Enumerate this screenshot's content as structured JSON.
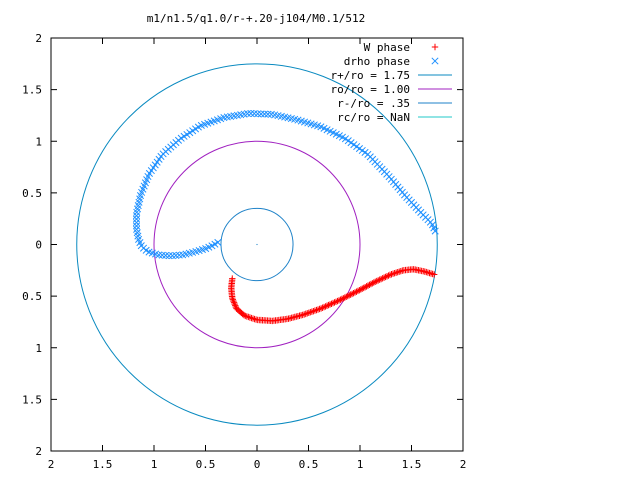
{
  "chart_data": {
    "type": "scatter",
    "title": "m1/n1.5/q1.0/r-+.20-j104/M0.1/512",
    "xlabel": "",
    "ylabel": "",
    "xlim": [
      -2,
      2
    ],
    "ylim": [
      -2,
      2
    ],
    "grid": false,
    "legend_position": "top-right",
    "x_ticks": [
      -2,
      -1.5,
      -1,
      -0.5,
      0,
      0.5,
      1,
      1.5,
      2
    ],
    "x_tick_labels": [
      "2",
      "1.5",
      "1",
      "0.5",
      "0",
      "0.5",
      "1",
      "1.5",
      "2"
    ],
    "y_ticks": [
      2,
      1.5,
      1,
      0.5,
      0,
      -0.5,
      -1,
      -1.5,
      -2
    ],
    "y_tick_labels": [
      "2",
      "1.5",
      "1",
      "0.5",
      "0",
      "0.5",
      "1",
      "1.5",
      "2"
    ],
    "series": [
      {
        "name": "W phase",
        "kind": "points",
        "marker": "+",
        "color": "#ff0000",
        "path_points": [
          [
            1.72,
            -0.29
          ],
          [
            1.62,
            -0.26
          ],
          [
            1.52,
            -0.24
          ],
          [
            1.42,
            -0.25
          ],
          [
            1.3,
            -0.29
          ],
          [
            1.15,
            -0.36
          ],
          [
            0.98,
            -0.45
          ],
          [
            0.8,
            -0.54
          ],
          [
            0.62,
            -0.62
          ],
          [
            0.45,
            -0.68
          ],
          [
            0.3,
            -0.72
          ],
          [
            0.15,
            -0.74
          ],
          [
            0.0,
            -0.73
          ],
          [
            -0.12,
            -0.69
          ],
          [
            -0.2,
            -0.62
          ],
          [
            -0.24,
            -0.52
          ],
          [
            -0.25,
            -0.42
          ],
          [
            -0.24,
            -0.33
          ]
        ],
        "count": 150
      },
      {
        "name": "drho phase",
        "kind": "points",
        "marker": "x",
        "color": "#1e90ff",
        "path_points": [
          [
            -0.38,
            0.02
          ],
          [
            -0.43,
            -0.01
          ],
          [
            -0.5,
            -0.04
          ],
          [
            -0.6,
            -0.07
          ],
          [
            -0.72,
            -0.1
          ],
          [
            -0.84,
            -0.11
          ],
          [
            -0.96,
            -0.1
          ],
          [
            -1.06,
            -0.07
          ],
          [
            -1.12,
            -0.02
          ],
          [
            -1.15,
            0.05
          ],
          [
            -1.17,
            0.15
          ],
          [
            -1.17,
            0.3
          ],
          [
            -1.13,
            0.48
          ],
          [
            -1.05,
            0.68
          ],
          [
            -0.92,
            0.87
          ],
          [
            -0.75,
            1.02
          ],
          [
            -0.55,
            1.15
          ],
          [
            -0.32,
            1.23
          ],
          [
            -0.08,
            1.27
          ],
          [
            0.15,
            1.26
          ],
          [
            0.38,
            1.21
          ],
          [
            0.62,
            1.14
          ],
          [
            0.85,
            1.03
          ],
          [
            1.08,
            0.87
          ],
          [
            1.28,
            0.66
          ],
          [
            1.45,
            0.46
          ],
          [
            1.6,
            0.3
          ],
          [
            1.7,
            0.2
          ],
          [
            1.73,
            0.13
          ]
        ],
        "count": 150
      },
      {
        "name": "r+/ro = 1.75",
        "kind": "circle",
        "radius": 1.75,
        "color": "#0a8ac0"
      },
      {
        "name": "ro/ro = 1.00",
        "kind": "circle",
        "radius": 1.0,
        "color": "#a020c0"
      },
      {
        "name": "r-/ro = .35",
        "kind": "circle",
        "radius": 0.35,
        "color": "#1e82c8"
      },
      {
        "name": "rc/ro = NaN",
        "kind": "circle",
        "radius": null,
        "color": "#20c8c8"
      }
    ]
  }
}
